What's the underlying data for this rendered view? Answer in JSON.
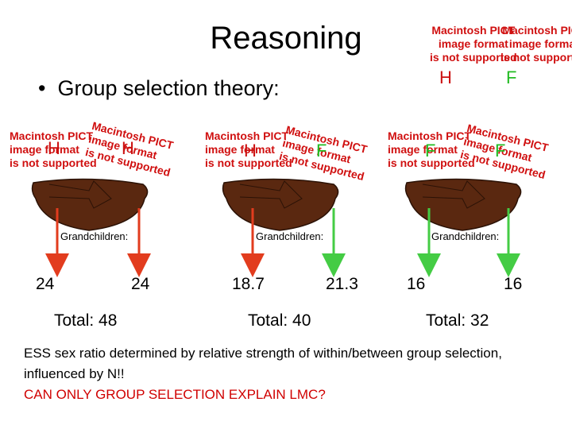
{
  "slide": {
    "title": "Reasoning",
    "bullet": "Group selection theory:",
    "bullet_symbol": "•",
    "pict_placeholder": {
      "line1": "Macintosh PICT",
      "line2": "image format",
      "line3": "is not supported"
    },
    "top_right": {
      "letters": [
        "H",
        "F"
      ]
    },
    "groups": [
      {
        "letters": [
          "H",
          "H"
        ],
        "label": "Grandchildren:",
        "left_value": "24",
        "right_value": "24",
        "total": "Total: 48",
        "arrow_colors": [
          "#e23c1e",
          "#e23c1e"
        ]
      },
      {
        "letters": [
          "H",
          "F"
        ],
        "label": "Grandchildren:",
        "left_value": "18.7",
        "right_value": "21.3",
        "total": "Total: 40",
        "arrow_colors": [
          "#e23c1e",
          "#44cc44"
        ]
      },
      {
        "letters": [
          "F",
          "F"
        ],
        "label": "Grandchildren:",
        "left_value": "16",
        "right_value": "16",
        "total": "Total: 32",
        "arrow_colors": [
          "#44cc44",
          "#44cc44"
        ]
      }
    ],
    "paragraph": "ESS sex ratio determined by relative strength of within/between group selection, influenced by N!!",
    "question": "CAN ONLY GROUP SELECTION EXPLAIN LMC?",
    "colors": {
      "h_letter": "#cc1111",
      "f_letter": "#22bb22",
      "nest": "#5a2810",
      "question": "#d00000"
    }
  }
}
